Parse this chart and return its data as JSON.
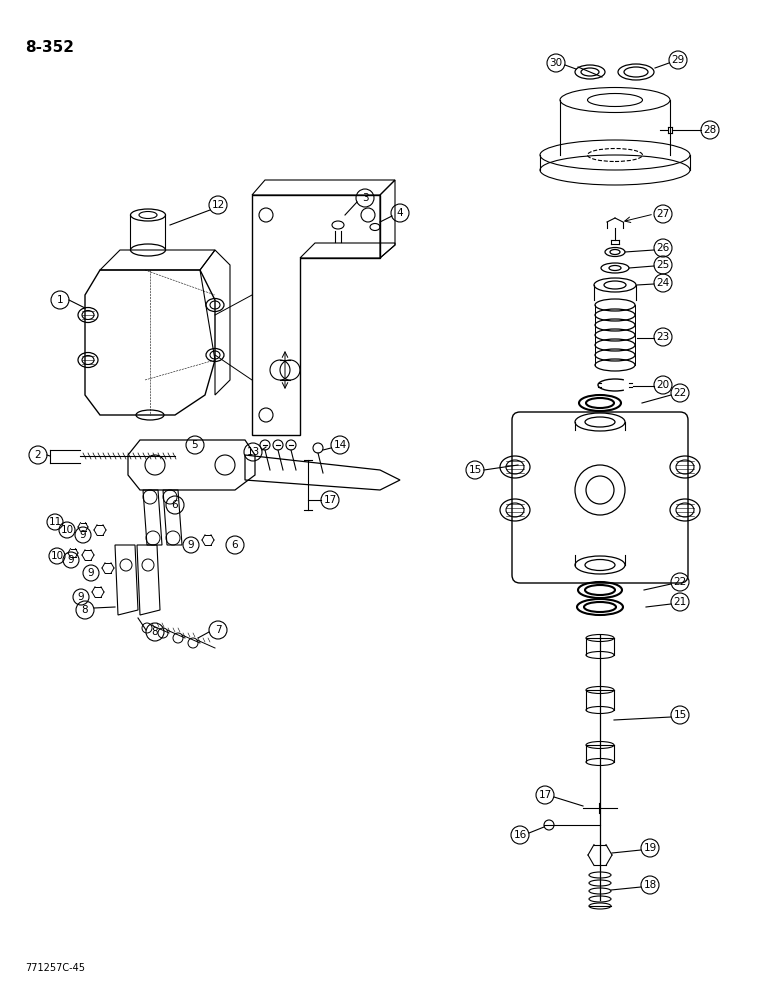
{
  "title": "8-352",
  "footnote": "771257C-45",
  "background_color": "#ffffff",
  "label_font_size": 8,
  "title_font_size": 11
}
